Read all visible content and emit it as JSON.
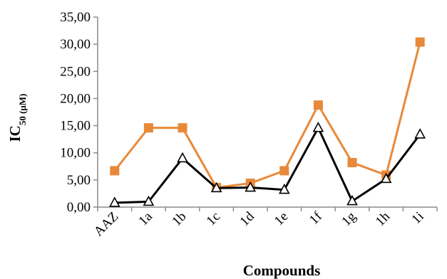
{
  "chart_data": {
    "type": "line",
    "categories": [
      "AAZ",
      "1a",
      "1b",
      "1c",
      "1d",
      "1e",
      "1f",
      "1g",
      "1h",
      "1i"
    ],
    "series": [
      {
        "marker": "square",
        "color": "#E8893A",
        "values": [
          6.7,
          14.6,
          14.6,
          3.6,
          4.4,
          6.7,
          18.8,
          8.2,
          5.9,
          30.4
        ]
      },
      {
        "marker": "triangle",
        "color": "#000000",
        "values": [
          0.8,
          1.0,
          9.0,
          3.5,
          3.6,
          3.2,
          14.6,
          1.1,
          5.2,
          13.4
        ]
      }
    ],
    "ylim": [
      0,
      35
    ],
    "yticks": [
      0,
      5,
      10,
      15,
      20,
      25,
      30,
      35
    ],
    "ytick_labels": [
      "0,00",
      "5,00",
      "10,00",
      "15,00",
      "20,00",
      "25,00",
      "30,00",
      "35,00"
    ],
    "xlabel": "Compounds",
    "ylabel_main": "IC",
    "ylabel_sub": "50",
    "ylabel_unit": " (µM)",
    "grid": false,
    "legend": "none"
  }
}
